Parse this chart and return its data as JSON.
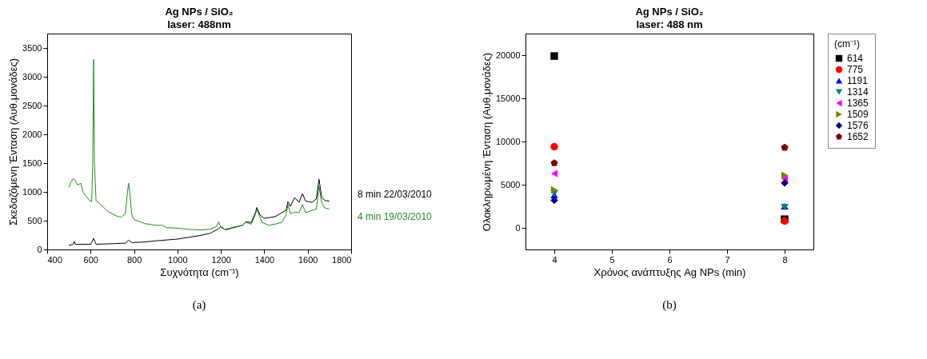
{
  "chart_data": [
    {
      "type": "line",
      "title": "Ag NPs / SiO₂",
      "subtitle": "laser: 488nm",
      "xlabel": "Συχνότητα (cm⁻¹)",
      "ylabel": "Σκεδαζόμενη Ένταση (Αυθ.μονάδες)",
      "xlim": [
        400,
        1800
      ],
      "ylim": [
        0,
        3750
      ],
      "xticks": [
        400,
        600,
        800,
        1000,
        1200,
        1400,
        1600,
        1800
      ],
      "yticks": [
        0,
        500,
        1000,
        1500,
        2000,
        2500,
        3000,
        3500
      ],
      "annotations": [
        "(a)"
      ],
      "series": [
        {
          "name": "8 min 22/03/2010",
          "color": "#000000",
          "x": [
            500,
            520,
            525,
            530,
            600,
            614,
            625,
            700,
            760,
            775,
            790,
            850,
            900,
            1000,
            1100,
            1150,
            1190,
            1200,
            1220,
            1250,
            1300,
            1315,
            1340,
            1360,
            1365,
            1380,
            1400,
            1450,
            1500,
            1509,
            1520,
            1540,
            1560,
            1576,
            1590,
            1620,
            1640,
            1652,
            1665,
            1680,
            1700
          ],
          "values": [
            70,
            90,
            140,
            90,
            90,
            190,
            90,
            100,
            110,
            160,
            120,
            130,
            150,
            180,
            240,
            280,
            360,
            400,
            340,
            370,
            420,
            480,
            470,
            650,
            730,
            600,
            540,
            570,
            680,
            830,
            750,
            900,
            820,
            970,
            840,
            820,
            880,
            1220,
            900,
            850,
            840
          ]
        },
        {
          "name": "4 min 19/03/2010",
          "color": "#228b22",
          "x": [
            500,
            510,
            520,
            530,
            540,
            555,
            565,
            580,
            595,
            605,
            610,
            614,
            618,
            625,
            640,
            660,
            680,
            700,
            720,
            740,
            760,
            770,
            775,
            780,
            790,
            800,
            850,
            900,
            930,
            950,
            1000,
            1050,
            1100,
            1150,
            1180,
            1190,
            1200,
            1220,
            1250,
            1300,
            1315,
            1340,
            1360,
            1365,
            1375,
            1390,
            1420,
            1450,
            1480,
            1500,
            1509,
            1520,
            1540,
            1560,
            1576,
            1590,
            1620,
            1640,
            1652,
            1665,
            1680,
            1700
          ],
          "values": [
            1080,
            1180,
            1230,
            1200,
            1120,
            1150,
            1000,
            920,
            850,
            830,
            1500,
            3300,
            1500,
            850,
            800,
            730,
            660,
            620,
            580,
            560,
            620,
            1000,
            1150,
            1000,
            600,
            520,
            450,
            420,
            420,
            380,
            370,
            350,
            340,
            350,
            400,
            480,
            380,
            350,
            380,
            420,
            470,
            440,
            620,
            700,
            600,
            470,
            420,
            440,
            470,
            600,
            780,
            620,
            650,
            640,
            780,
            640,
            680,
            700,
            1100,
            800,
            720,
            700
          ]
        }
      ]
    },
    {
      "type": "scatter",
      "title": "Ag NPs / SiO₂",
      "subtitle": "laser: 488 nm",
      "xlabel": "Χρόνος ανάπτυξης Ag NPs (min)",
      "ylabel": "Ολοκληρωμένη Ένταση (Αυθ.μονάδες)",
      "xlim": [
        3.5,
        8.5
      ],
      "ylim": [
        -2500,
        22500
      ],
      "xticks": [
        4,
        5,
        6,
        7,
        8
      ],
      "yticks": [
        0,
        5000,
        10000,
        15000,
        20000
      ],
      "legend": "right",
      "legend_title": "(cm⁻¹)",
      "annotations": [
        "(b)"
      ],
      "series": [
        {
          "name": "614",
          "color": "#000000",
          "marker": "square",
          "x": [
            4,
            8
          ],
          "values": [
            19900,
            1000
          ]
        },
        {
          "name": "775",
          "color": "#ff0000",
          "marker": "circle",
          "x": [
            4,
            8
          ],
          "values": [
            9400,
            800
          ]
        },
        {
          "name": "1191",
          "color": "#0000ff",
          "marker": "triangle",
          "x": [
            4,
            8
          ],
          "values": [
            3800,
            2500
          ]
        },
        {
          "name": "1314",
          "color": "#008080",
          "marker": "triangle-down",
          "x": [
            4,
            8
          ],
          "values": [
            4000,
            2400
          ]
        },
        {
          "name": "1365",
          "color": "#ff00ff",
          "marker": "triangle-left",
          "x": [
            4,
            8
          ],
          "values": [
            6300,
            5700
          ]
        },
        {
          "name": "1509",
          "color": "#808000",
          "marker": "triangle-right",
          "x": [
            4,
            8
          ],
          "values": [
            4400,
            6100
          ]
        },
        {
          "name": "1576",
          "color": "#000080",
          "marker": "diamond",
          "x": [
            4,
            8
          ],
          "values": [
            3200,
            5200
          ]
        },
        {
          "name": "1652",
          "color": "#800000",
          "x": [
            4,
            8
          ],
          "values": [
            7500,
            9300
          ]
        }
      ]
    }
  ]
}
